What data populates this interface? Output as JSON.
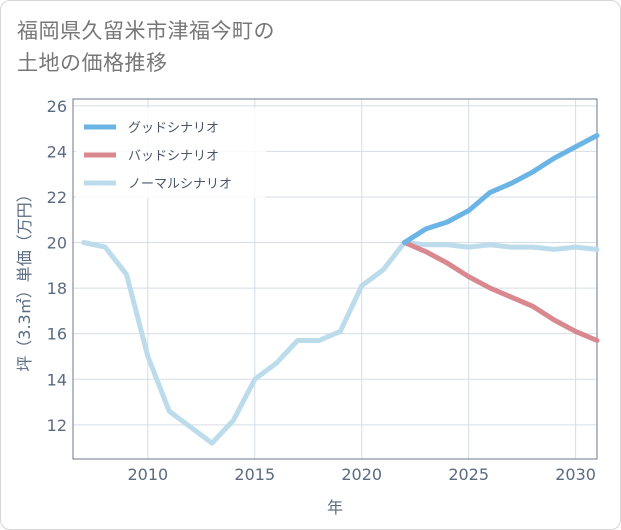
{
  "title": {
    "line1": "福岡県久留米市津福今町の",
    "line2": "土地の価格推移"
  },
  "chart_data": {
    "type": "line",
    "xlabel": "年",
    "ylabel": "坪（3.3㎡）単価（万円）",
    "xlim": [
      2006.5,
      2031
    ],
    "ylim": [
      10.5,
      26.3
    ],
    "xticks": [
      2010,
      2015,
      2020,
      2025,
      2030
    ],
    "yticks": [
      12,
      14,
      16,
      18,
      20,
      22,
      24,
      26
    ],
    "grid": true,
    "legend_position": "top-left",
    "series": [
      {
        "name": "グッドシナリオ",
        "color": "#6ab4e6",
        "x": [
          2022,
          2023,
          2024,
          2025,
          2026,
          2027,
          2028,
          2029,
          2030,
          2031
        ],
        "values": [
          20.0,
          20.6,
          20.9,
          21.4,
          22.2,
          22.6,
          23.1,
          23.7,
          24.2,
          24.7
        ]
      },
      {
        "name": "バッドシナリオ",
        "color": "#d98890",
        "x": [
          2022,
          2023,
          2024,
          2025,
          2026,
          2027,
          2028,
          2029,
          2030,
          2031
        ],
        "values": [
          20.0,
          19.6,
          19.1,
          18.5,
          18.0,
          17.6,
          17.2,
          16.6,
          16.1,
          15.7
        ]
      },
      {
        "name": "ノーマルシナリオ",
        "color": "#bcdcec",
        "x": [
          2007,
          2008,
          2009,
          2010,
          2011,
          2012,
          2013,
          2014,
          2015,
          2016,
          2017,
          2018,
          2019,
          2020,
          2021,
          2022,
          2023,
          2024,
          2025,
          2026,
          2027,
          2028,
          2029,
          2030,
          2031
        ],
        "values": [
          20.0,
          19.8,
          18.6,
          15.0,
          12.6,
          11.9,
          11.2,
          12.2,
          14.0,
          14.7,
          15.7,
          15.7,
          16.1,
          18.1,
          18.8,
          20.0,
          19.9,
          19.9,
          19.8,
          19.9,
          19.8,
          19.8,
          19.7,
          19.8,
          19.7
        ]
      }
    ]
  }
}
